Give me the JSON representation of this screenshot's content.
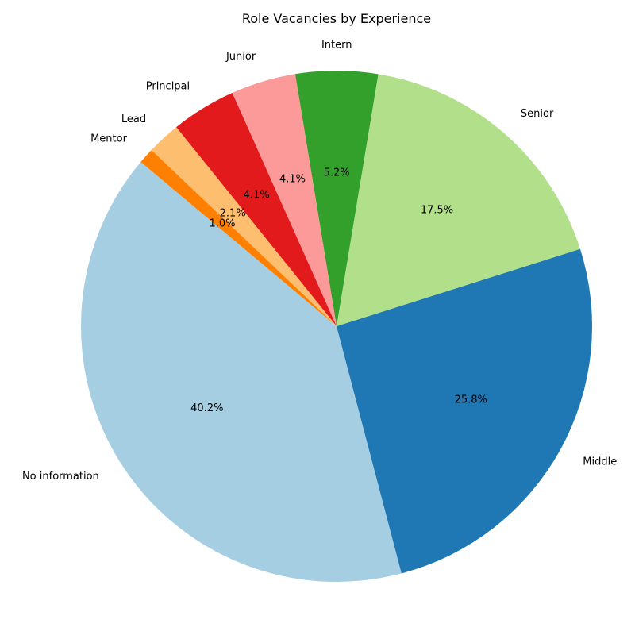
{
  "chart_data": {
    "type": "pie",
    "title": "Role Vacancies by Experience",
    "start_angle_deg": 140,
    "direction": "counterclockwise",
    "slices": [
      {
        "label": "No information",
        "value": 40.2,
        "pct_label": "40.2%",
        "color": "#a6cee3"
      },
      {
        "label": "Middle",
        "value": 25.8,
        "pct_label": "25.8%",
        "color": "#1f78b4"
      },
      {
        "label": "Senior",
        "value": 17.5,
        "pct_label": "17.5%",
        "color": "#b2df8a"
      },
      {
        "label": "Intern",
        "value": 5.2,
        "pct_label": "5.2%",
        "color": "#33a02c"
      },
      {
        "label": "Junior",
        "value": 4.1,
        "pct_label": "4.1%",
        "color": "#fb9a99"
      },
      {
        "label": "Principal",
        "value": 4.1,
        "pct_label": "4.1%",
        "color": "#e31a1c"
      },
      {
        "label": "Lead",
        "value": 2.1,
        "pct_label": "2.1%",
        "color": "#fdbf6f"
      },
      {
        "label": "Mentor",
        "value": 1.0,
        "pct_label": "1.0%",
        "color": "#ff7f00"
      }
    ]
  }
}
